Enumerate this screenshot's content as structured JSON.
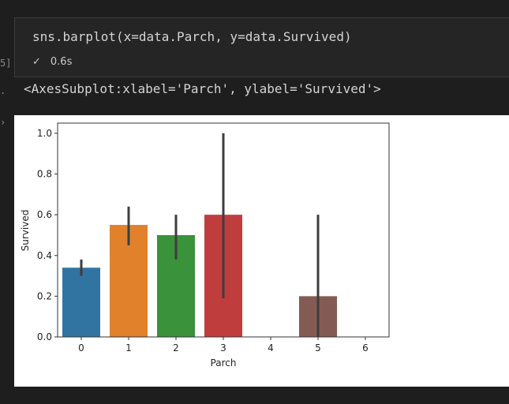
{
  "cell": {
    "exec_count_fragment": "5]",
    "code": "sns.barplot(x=data.Parch, y=data.Survived)",
    "status_time": "0.6s",
    "check_icon": "check-icon"
  },
  "output": {
    "text": "<AxesSubplot:xlabel='Parch', ylabel='Survived'>"
  },
  "colors": {
    "bars": [
      "#3274a1",
      "#e1812c",
      "#3a923a",
      "#c03d3e",
      "#9372b2",
      "#845b53",
      "#d684bd"
    ]
  },
  "chart_data": {
    "type": "bar",
    "categories": [
      "0",
      "1",
      "2",
      "3",
      "4",
      "5",
      "6"
    ],
    "values": [
      0.34,
      0.55,
      0.5,
      0.6,
      null,
      0.2,
      null
    ],
    "ci_low": [
      0.3,
      0.45,
      0.38,
      0.19,
      null,
      0.0,
      null
    ],
    "ci_high": [
      0.38,
      0.64,
      0.6,
      1.0,
      null,
      0.6,
      null
    ],
    "xlabel": "Parch",
    "ylabel": "Survived",
    "ylim": [
      0,
      1.05
    ],
    "yticks": [
      "0.0",
      "0.2",
      "0.4",
      "0.6",
      "0.8",
      "1.0"
    ],
    "ytick_values": [
      0,
      0.2,
      0.4,
      0.6,
      0.8,
      1.0
    ],
    "grid": false,
    "legend": "none"
  }
}
